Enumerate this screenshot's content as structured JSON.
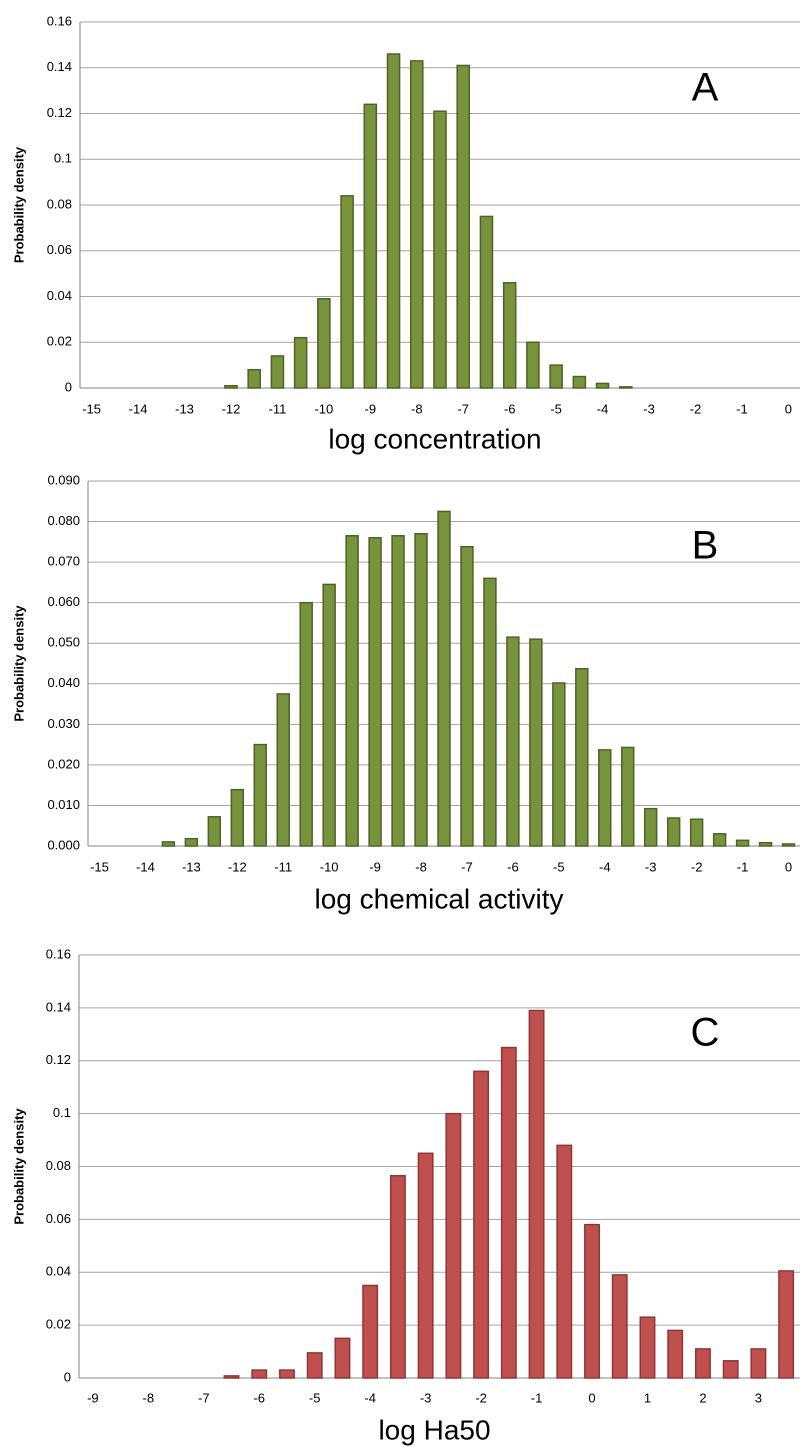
{
  "chart_data": [
    {
      "type": "bar",
      "annotation": "A",
      "x_label": "log concentration",
      "y_label": "Probability density",
      "categories": [
        -15,
        null,
        -14,
        null,
        -13,
        null,
        -12,
        null,
        -11,
        null,
        -10,
        null,
        -9,
        null,
        -8,
        null,
        -7,
        null,
        -6,
        null,
        -5,
        null,
        -4,
        null,
        -3,
        null,
        -2,
        null,
        -1,
        null,
        0
      ],
      "values": [
        0,
        0,
        0,
        0,
        0,
        0,
        0.001,
        0.008,
        0.014,
        0.022,
        0.039,
        0.084,
        0.124,
        0.146,
        0.143,
        0.121,
        0.141,
        0.075,
        0.046,
        0.02,
        0.01,
        0.005,
        0.002,
        0.0005,
        0,
        0,
        0,
        0,
        0,
        0,
        0
      ],
      "color": "#77933c",
      "edge_color": "#4f6228",
      "ylim": [
        0,
        0.16
      ],
      "yticks": [
        0,
        0.02,
        0.04,
        0.06,
        0.08,
        0.1,
        0.12,
        0.14,
        0.16
      ],
      "grid": true
    },
    {
      "type": "bar",
      "annotation": "B",
      "x_label": "log chemical activity",
      "y_label": "Probability density",
      "categories": [
        -15,
        null,
        -14,
        null,
        -13,
        null,
        -12,
        null,
        -11,
        null,
        -10,
        null,
        -9,
        null,
        -8,
        null,
        -7,
        null,
        -6,
        null,
        -5,
        null,
        -4,
        null,
        -3,
        null,
        -2,
        null,
        -1,
        null,
        0
      ],
      "values": [
        0,
        0,
        0,
        0.001,
        0.0018,
        0.0072,
        0.0139,
        0.025,
        0.0375,
        0.06,
        0.0645,
        0.0765,
        0.076,
        0.0765,
        0.077,
        0.0825,
        0.0738,
        0.066,
        0.0515,
        0.051,
        0.0402,
        0.0437,
        0.0237,
        0.0243,
        0.0092,
        0.0069,
        0.0066,
        0.003,
        0.0014,
        0.0008,
        0.0005
      ],
      "color": "#77933c",
      "edge_color": "#4f6228",
      "ylim": [
        0,
        0.09
      ],
      "yticks": [
        {
          "value": 0,
          "label": "0.000"
        },
        {
          "value": 0.01,
          "label": "0.010"
        },
        {
          "value": 0.02,
          "label": "0.020"
        },
        {
          "value": 0.03,
          "label": "0.030"
        },
        {
          "value": 0.04,
          "label": "0.040"
        },
        {
          "value": 0.05,
          "label": "0.050"
        },
        {
          "value": 0.06,
          "label": "0.060"
        },
        {
          "value": 0.07,
          "label": "0.070"
        },
        {
          "value": 0.08,
          "label": "0.080"
        },
        {
          "value": 0.09,
          "label": "0.090"
        }
      ],
      "grid": true
    },
    {
      "type": "bar",
      "annotation": "C",
      "x_label": "log Ha50",
      "y_label": "Probability density",
      "categories": [
        -9,
        null,
        -8,
        null,
        -7,
        null,
        -6,
        null,
        -5,
        null,
        -4,
        null,
        -3,
        null,
        -2,
        null,
        -1,
        null,
        0,
        null,
        1,
        null,
        2,
        null,
        3,
        null
      ],
      "values": [
        0,
        0,
        0,
        0,
        0,
        0.0008,
        0.003,
        0.003,
        0.0095,
        0.015,
        0.035,
        0.0765,
        0.085,
        0.1,
        0.116,
        0.125,
        0.139,
        0.088,
        0.058,
        0.039,
        0.023,
        0.018,
        0.011,
        0.0065,
        0.011,
        0.0405
      ],
      "color": "#c0504d",
      "edge_color": "#8c3836",
      "ylim": [
        0,
        0.16
      ],
      "yticks": [
        0,
        0.02,
        0.04,
        0.06,
        0.08,
        0.1,
        0.12,
        0.14,
        0.16
      ],
      "grid": true
    }
  ]
}
